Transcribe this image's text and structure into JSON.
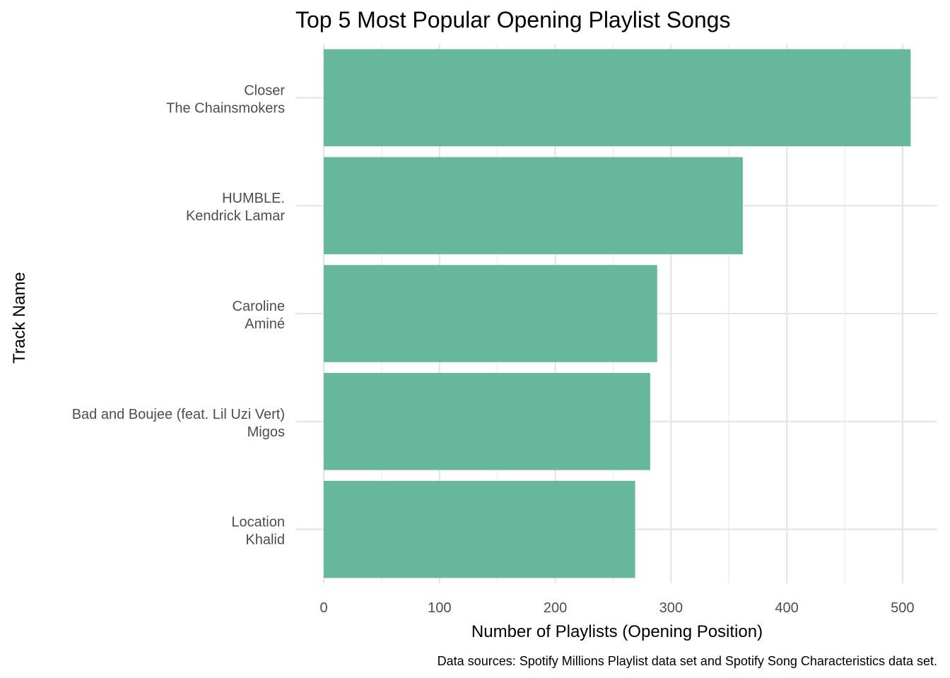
{
  "chart_data": {
    "type": "bar",
    "orientation": "horizontal",
    "title": "Top 5 Most Popular Opening Playlist Songs",
    "xlabel": "Number of Playlists (Opening Position)",
    "ylabel": "Track Name",
    "caption": "Data sources: Spotify Millions Playlist data set and Spotify Song Characteristics data set.",
    "categories": [
      [
        "Closer",
        "The Chainsmokers"
      ],
      [
        "HUMBLE.",
        "Kendrick Lamar"
      ],
      [
        "Caroline",
        "Aminé"
      ],
      [
        "Bad and Boujee (feat. Lil Uzi Vert)",
        "Migos"
      ],
      [
        "Location",
        "Khalid"
      ]
    ],
    "values": [
      507,
      362,
      288,
      282,
      269
    ],
    "xticks": [
      0,
      100,
      200,
      300,
      400,
      500
    ],
    "xlim": [
      0,
      530
    ],
    "bar_color": "#66b79b",
    "grid": true,
    "legend": "none"
  }
}
